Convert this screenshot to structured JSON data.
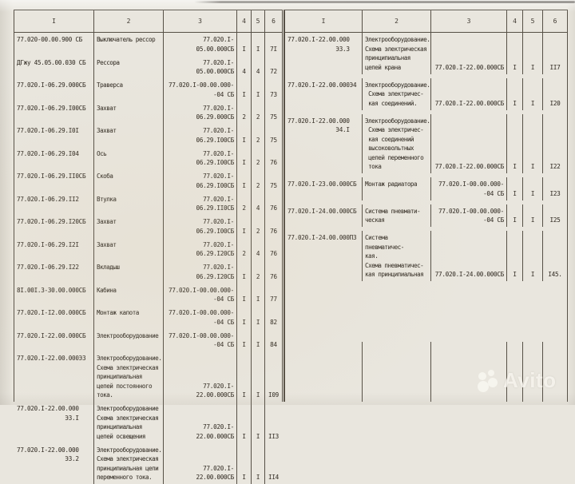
{
  "colors": {
    "paper": "#e9e6de",
    "ink": "#3f3931",
    "line": "#565046"
  },
  "watermark": {
    "text": "Avito"
  },
  "left_table": {
    "headers": [
      "I",
      "2",
      "3",
      "4",
      "5",
      "6"
    ],
    "rows": [
      [
        "77.020-00.00.900 СБ",
        "Выключатель рессор",
        "77.020.I-05.00.000СБ",
        "I",
        "I",
        "7I"
      ],
      [
        "ДГжу 45.05.00.030 СБ",
        "Рессора",
        "77.020.I-05.00.000СБ",
        "4",
        "4",
        "72"
      ],
      [
        "77.020.I-06.29.000СБ",
        "Траверса",
        "77.020.I-00.00.000-\n-04 СБ",
        "I",
        "I",
        "73"
      ],
      [
        "77.020.I-06.29.I00СБ",
        "Захват",
        "77.020.I-06.29.000СБ",
        "2",
        "2",
        "75"
      ],
      [
        "77.020.I-06.29.I0I",
        "Захват",
        "77.020.I-06.29.I00СБ",
        "I",
        "2",
        "75"
      ],
      [
        "77.020.I-06.29.I04",
        "Ось",
        "77.020.I-06.29.I00СБ",
        "I",
        "2",
        "76"
      ],
      [
        "77.020.I-06.29.II0СБ",
        "Скоба",
        "77.020.I-06.29.I00СБ",
        "I",
        "2",
        "75"
      ],
      [
        "77.020.I-06.29.II2",
        "Втулка",
        "77.020.I-06.29.II0СБ",
        "2",
        "4",
        "76"
      ],
      [
        "77.020.I-06.29.I20СБ",
        "Захват",
        "77.020.I-06.29.I00СБ",
        "I",
        "2",
        "76"
      ],
      [
        "77.020.I-06.29.I2I",
        "Захват",
        "77.020.I-06.29.I20СБ",
        "2",
        "4",
        "76"
      ],
      [
        "77.020.I-06.29.I22",
        "Вкладыш",
        "77.020.I-06.29.I20СБ",
        "I",
        "2",
        "76"
      ],
      [
        "8I.00I.3-30.00.000СБ",
        "Кабина",
        "77.020.I-00.00.000-\n-04 СБ",
        "I",
        "I",
        "77"
      ],
      [
        "77.020.I-I2.00.000СБ",
        "Монтаж капота",
        "77.020.I-00.00.000-\n-04 СБ",
        "I",
        "I",
        "82"
      ],
      [
        "77.020.I-22.00.000СБ",
        "Электрооборудование",
        "77.020.I-00.00.000-\n-04 СБ",
        "I",
        "I",
        "84"
      ],
      [
        "77.020.I-22.00.000Э3",
        "Электрооборудование.\nСхема электрическая\nпринципиальная\nцепей постоянного\nтока.",
        "77.020.I-22.00.000СБ",
        "I",
        "I",
        "I09"
      ],
      [
        "77.020.I-22.00.000\n              Э3.I",
        "Электрооборудование\nСхема электрическая\nпринципиальная\nцепей освещения",
        "77.020.I-22.00.000СБ",
        "I",
        "I",
        "II3"
      ],
      [
        "77.020.I-22.00.000\n              Э3.2",
        "Электрооборудование.\nСхема электрическая\nпринципиальная цепи\nпеременного тока.",
        "77.020.I-22.00.000СБ",
        "I",
        "I",
        "II4"
      ]
    ]
  },
  "right_table": {
    "headers": [
      "I",
      "2",
      "3",
      "4",
      "5",
      "6"
    ],
    "rows": [
      [
        "77.020.I-22.00.000\n              Э3.3",
        "Электрооборудование.\nСхема электрическая\nпринципиальная\nцепей крана",
        "77.020.I-22.00.000СБ",
        "I",
        "I",
        "II7"
      ],
      [
        "77.020.I-22.00.000Э4",
        "Электрооборудование.\n Схема электричес-\n кая соединений.",
        "77.020.I-22.00.000СБ",
        "I",
        "I",
        "I20"
      ],
      [
        "77.020.I-22.00.000\n              Э4.I",
        "Электрооборудование.\n Схема электричес-\n кая соединений\n высоковольтных\n цепей переменного\n тока",
        "77.020.I-22.00.000СБ",
        "I",
        "I",
        "I22"
      ],
      [
        "77.020.I-23.00.000СБ",
        "Монтаж радиатора",
        "77.020.I-00.00.000-\n-04 СБ",
        "I",
        "I",
        "I23"
      ],
      [
        "77.020.I-24.00.000СБ",
        "Система пневмати-\nческая",
        "77.020.I-00.00.000-\n-04 СБ",
        "I",
        "I",
        "I25"
      ],
      [
        "77.020.I-24.00.000П3",
        "Система пневматичес-\nкая.\nСхема пневматичес-\nкая принципиальная",
        "77.020.I-24.00.000СБ",
        "I",
        "I",
        "I45."
      ]
    ]
  }
}
